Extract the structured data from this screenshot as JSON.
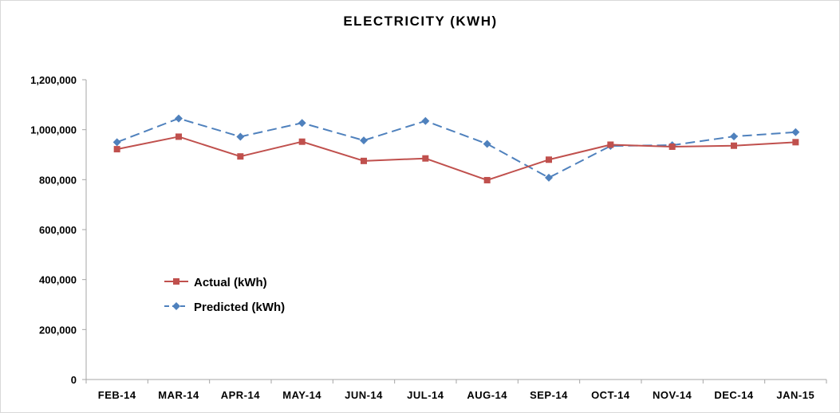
{
  "chart_data": {
    "type": "line",
    "title": "ELECTRICITY (KWH)",
    "xlabel": "",
    "ylabel": "",
    "categories": [
      "FEB-14",
      "MAR-14",
      "APR-14",
      "MAY-14",
      "JUN-14",
      "JUL-14",
      "AUG-14",
      "SEP-14",
      "OCT-14",
      "NOV-14",
      "DEC-14",
      "JAN-15"
    ],
    "y_ticks": [
      "0",
      "200,000",
      "400,000",
      "600,000",
      "800,000",
      "1,000,000",
      "1,200,000"
    ],
    "ylim": [
      0,
      1200000
    ],
    "grid": false,
    "legend_position": "center-left",
    "series": [
      {
        "name": "Actual (kWh)",
        "color": "#c0504d",
        "marker": "square",
        "line_style": "solid",
        "values": [
          922000,
          972000,
          893000,
          952000,
          875000,
          885000,
          798000,
          880000,
          940000,
          932000,
          936000,
          950000
        ]
      },
      {
        "name": "Predicted (kWh)",
        "color": "#4f81bd",
        "marker": "diamond",
        "line_style": "dashed",
        "values": [
          950000,
          1045000,
          972000,
          1027000,
          957000,
          1035000,
          943000,
          808000,
          935000,
          938000,
          973000,
          990000
        ]
      }
    ]
  }
}
